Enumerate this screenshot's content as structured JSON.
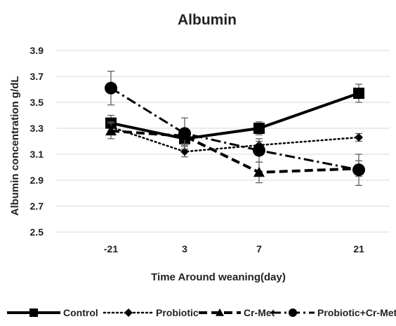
{
  "chart_data": {
    "type": "line",
    "title": "Albumin",
    "xlabel": "Time Around weaning(day)",
    "ylabel": "Albumin concentration g/dL",
    "categories": [
      "-21",
      "3",
      "7",
      "21"
    ],
    "ylim": [
      2.5,
      3.9
    ],
    "yticks": [
      "3.9",
      "3.7",
      "3.5",
      "3.3",
      "3.1",
      "2.9",
      "2.7",
      "2.5"
    ],
    "grid": true,
    "legend_position": "bottom",
    "series": [
      {
        "name": "Control",
        "values": [
          3.34,
          3.22,
          3.3,
          3.57
        ],
        "errors": [
          0.06,
          0.05,
          0.05,
          0.07
        ],
        "marker": "square",
        "line_style": "solid",
        "color": "#000000"
      },
      {
        "name": "Probiotic",
        "values": [
          3.31,
          3.12,
          3.17,
          3.23
        ],
        "errors": [
          0.04,
          0.04,
          0.03,
          0.03
        ],
        "marker": "diamond",
        "line_style": "dotted",
        "color": "#000000"
      },
      {
        "name": "Cr-Met",
        "values": [
          3.28,
          3.24,
          2.96,
          2.99
        ],
        "errors": [
          0.06,
          0.06,
          0.08,
          0.06
        ],
        "marker": "triangle",
        "line_style": "dashed",
        "color": "#000000"
      },
      {
        "name": "Probiotic+Cr-Met",
        "values": [
          3.61,
          3.26,
          3.13,
          2.98
        ],
        "errors": [
          0.13,
          0.12,
          0.09,
          0.12
        ],
        "marker": "circle",
        "line_style": "dash-dot",
        "color": "#000000"
      }
    ]
  }
}
